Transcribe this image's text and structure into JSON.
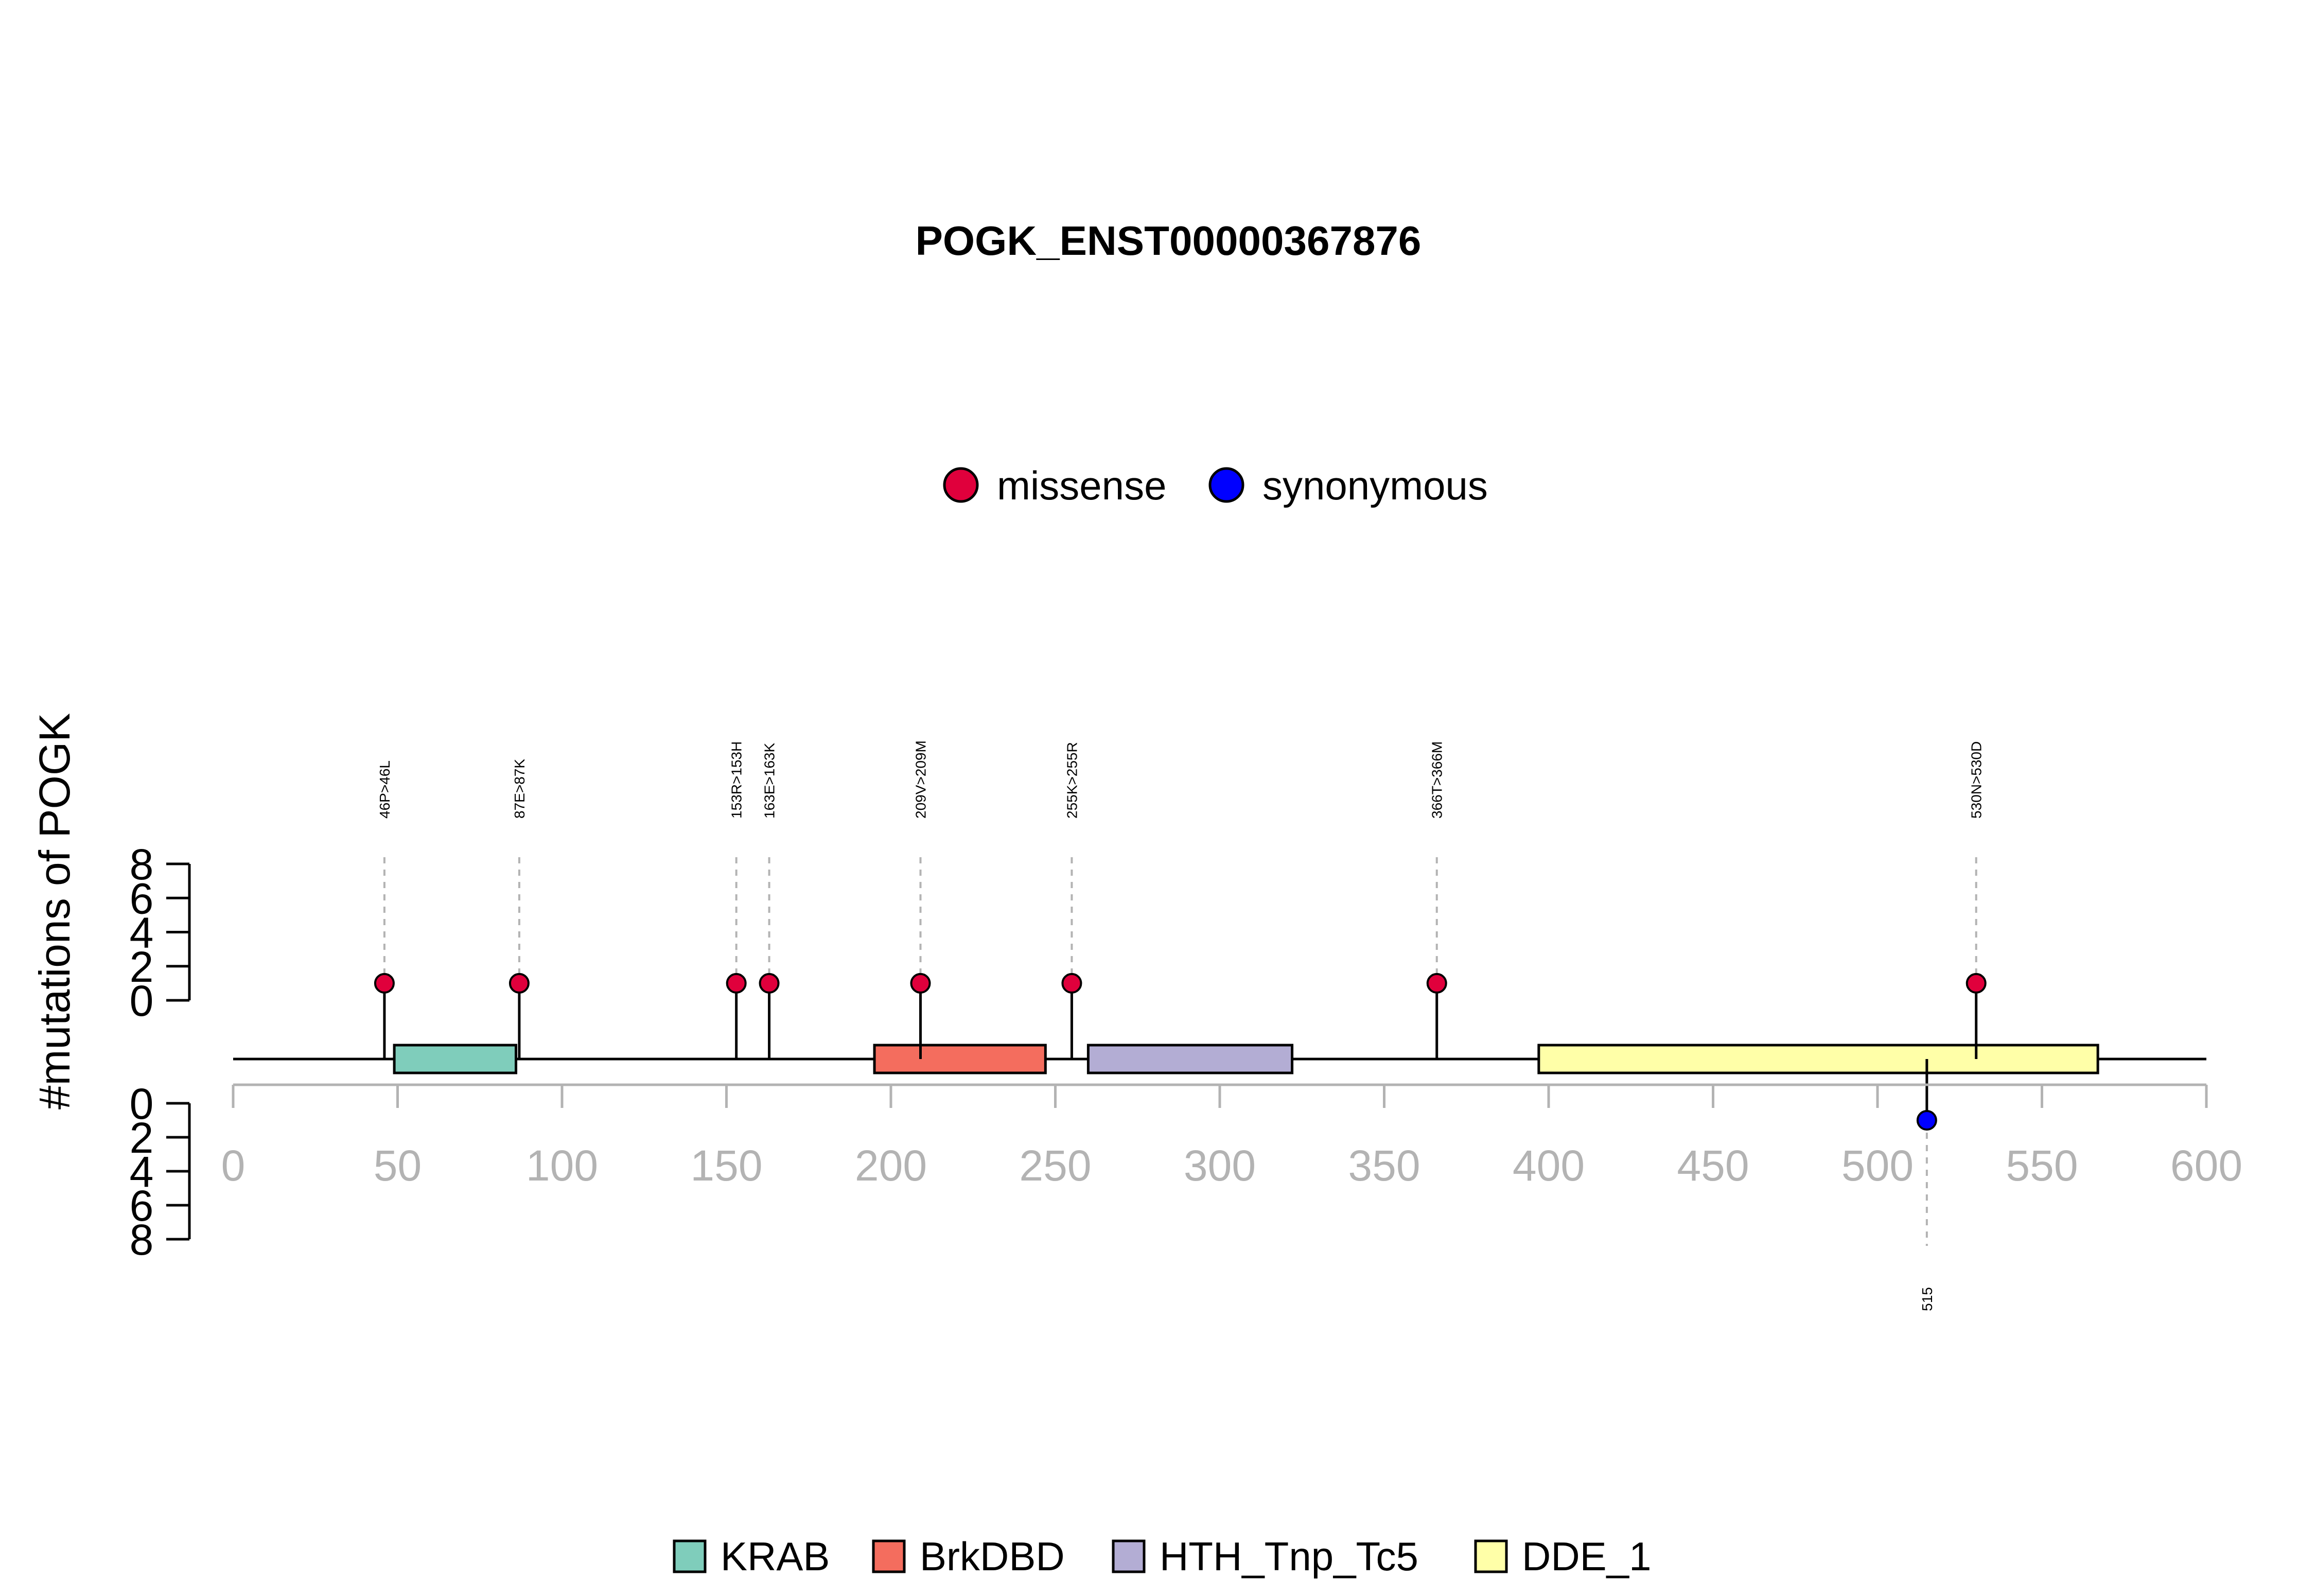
{
  "chart_data": {
    "type": "lollipop",
    "title": "POGK_ENST00000367876",
    "ylabel": "#mutations of POGK",
    "protein_length": 609,
    "xlim": [
      0,
      600
    ],
    "x_ticks": [
      0,
      50,
      100,
      150,
      200,
      250,
      300,
      350,
      400,
      450,
      500,
      550,
      600
    ],
    "y_ticks_upper": [
      0,
      2,
      4,
      6,
      8
    ],
    "y_ticks_lower": [
      0,
      2,
      4,
      6,
      8
    ],
    "ylim": [
      0,
      8
    ],
    "mutation_legend": [
      {
        "name": "missense",
        "color": "#e0003c"
      },
      {
        "name": "synonymous",
        "color": "#0000ff"
      }
    ],
    "domain_legend": [
      {
        "name": "KRAB",
        "color": "#7fcdbb"
      },
      {
        "name": "BrkDBD",
        "color": "#f46d5e"
      },
      {
        "name": "HTH_Tnp_Tc5",
        "color": "#b3add4"
      },
      {
        "name": "DDE_1",
        "color": "#ffffa8"
      }
    ],
    "domains": [
      {
        "name": "KRAB",
        "start": 49,
        "end": 86
      },
      {
        "name": "BrkDBD",
        "start": 195,
        "end": 247
      },
      {
        "name": "HTH_Tnp_Tc5",
        "start": 260,
        "end": 322
      },
      {
        "name": "DDE_1",
        "start": 397,
        "end": 567
      }
    ],
    "mutations_upper": [
      {
        "position": 46,
        "label": "46P>46L",
        "count": 1,
        "type": "missense"
      },
      {
        "position": 87,
        "label": "87E>87K",
        "count": 1,
        "type": "missense"
      },
      {
        "position": 153,
        "label": "153R>153H",
        "count": 1,
        "type": "missense"
      },
      {
        "position": 163,
        "label": "163E>163K",
        "count": 1,
        "type": "missense"
      },
      {
        "position": 209,
        "label": "209V>209M",
        "count": 1,
        "type": "missense"
      },
      {
        "position": 255,
        "label": "255K>255R",
        "count": 1,
        "type": "missense"
      },
      {
        "position": 366,
        "label": "366T>366M",
        "count": 1,
        "type": "missense"
      },
      {
        "position": 530,
        "label": "530N>530D",
        "count": 1,
        "type": "missense"
      }
    ],
    "mutations_lower": [
      {
        "position": 515,
        "label": "515",
        "count": 1,
        "type": "synonymous"
      }
    ]
  }
}
